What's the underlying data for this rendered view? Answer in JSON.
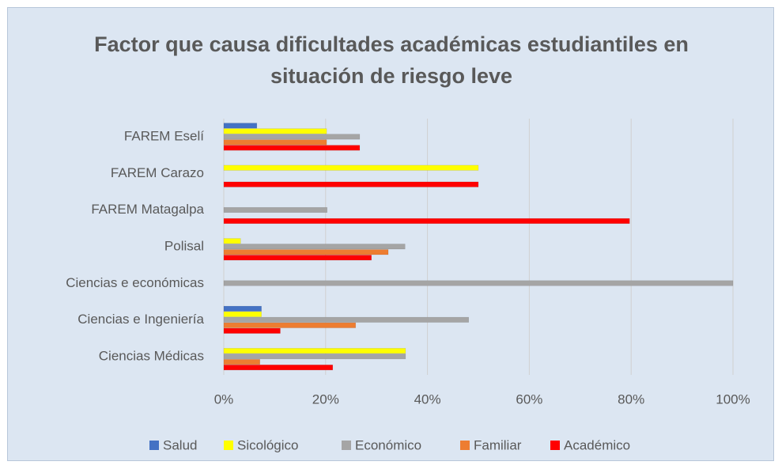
{
  "chart_data": {
    "type": "hbar",
    "title": "Factor que causa dificultades académicas estudiantiles en situación de riesgo leve",
    "categories": [
      "FAREM Eselí",
      "FAREM Carazo",
      "FAREM Matagalpa",
      "Polisal",
      "Ciencias e económicas",
      "Ciencias e Ingeniería",
      "Ciencias Médicas"
    ],
    "series": [
      {
        "name": "Salud",
        "color": "#4472c4",
        "values": [
          6.5,
          0,
          0,
          0,
          0,
          7.4,
          0
        ]
      },
      {
        "name": "Sicológico",
        "color": "#ffff00",
        "values": [
          20.2,
          50,
          0,
          3.3,
          0,
          7.4,
          35.7
        ]
      },
      {
        "name": "Económico",
        "color": "#a5a5a5",
        "values": [
          26.7,
          0,
          20.3,
          35.6,
          100,
          48.1,
          35.7
        ]
      },
      {
        "name": "Familiar",
        "color": "#ed7d31",
        "values": [
          20.2,
          0,
          0,
          32.3,
          0,
          25.9,
          7.1
        ]
      },
      {
        "name": "Académico",
        "color": "#ff0000",
        "values": [
          26.7,
          50,
          79.7,
          29,
          0,
          11.1,
          21.4
        ]
      }
    ],
    "xlim": [
      0,
      100
    ],
    "xticks": [
      {
        "value": 0,
        "label": "0%"
      },
      {
        "value": 20,
        "label": "20%"
      },
      {
        "value": 40,
        "label": "40%"
      },
      {
        "value": 60,
        "label": "60%"
      },
      {
        "value": 80,
        "label": "80%"
      },
      {
        "value": 100,
        "label": "100%"
      }
    ],
    "grid": true,
    "legend": "bottom"
  }
}
